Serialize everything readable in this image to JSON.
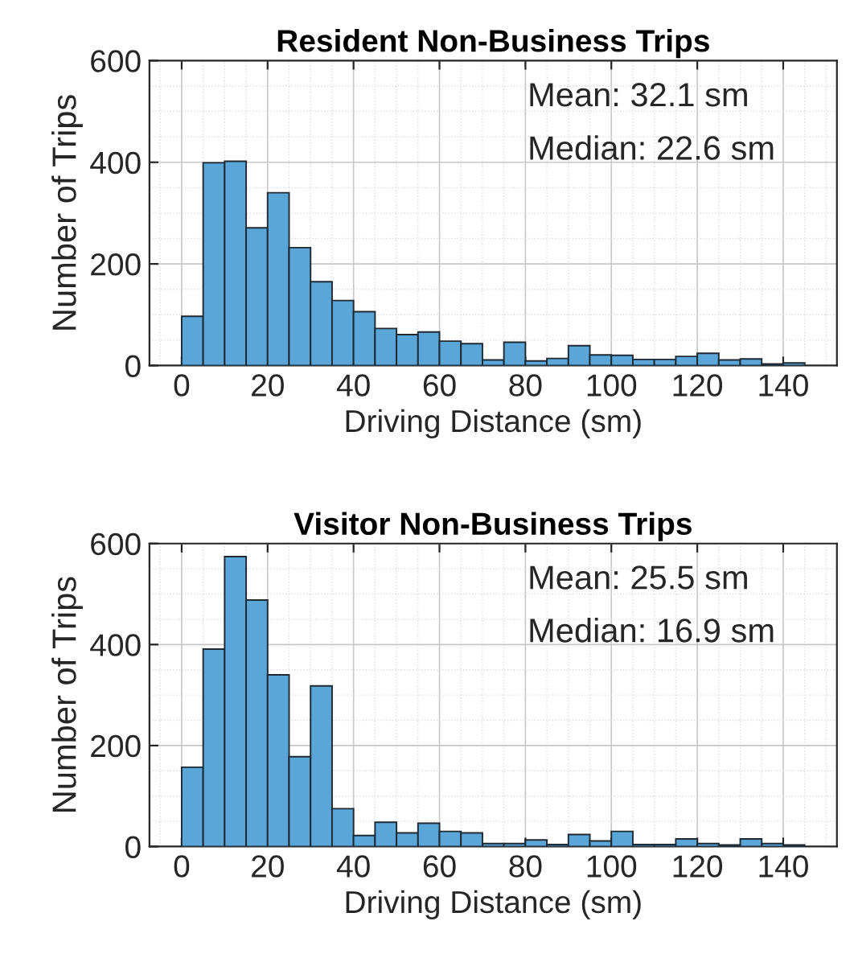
{
  "chart_data": [
    {
      "type": "histogram",
      "title": "Resident Non-Business Trips",
      "xlabel": "Driving Distance (sm)",
      "ylabel": "Number of Trips",
      "bins": [
        0,
        5,
        10,
        15,
        20,
        25,
        30,
        35,
        40,
        45,
        50,
        55,
        60,
        65,
        70,
        75,
        80,
        85,
        90,
        95,
        100,
        105,
        110,
        115,
        120,
        125,
        130,
        135,
        140,
        145
      ],
      "values": [
        97,
        399,
        402,
        271,
        340,
        232,
        165,
        128,
        106,
        73,
        61,
        66,
        48,
        43,
        11,
        46,
        9,
        14,
        39,
        21,
        20,
        12,
        12,
        18,
        24,
        11,
        13,
        3,
        5
      ],
      "color": "#5aa6d8",
      "xlim": [
        -7.5,
        152.5
      ],
      "xticks": [
        0,
        20,
        40,
        60,
        80,
        100,
        120,
        140
      ],
      "ylim": [
        0,
        600
      ],
      "yticks": [
        0,
        200,
        400,
        600
      ],
      "grid": true,
      "annotations": [
        "Mean: 32.1 sm",
        "Median: 22.6 sm"
      ]
    },
    {
      "type": "histogram",
      "title": "Visitor Non-Business Trips",
      "xlabel": "Driving Distance (sm)",
      "ylabel": "Number of Trips",
      "bins": [
        0,
        5,
        10,
        15,
        20,
        25,
        30,
        35,
        40,
        45,
        50,
        55,
        60,
        65,
        70,
        75,
        80,
        85,
        90,
        95,
        100,
        105,
        110,
        115,
        120,
        125,
        130,
        135,
        140,
        145
      ],
      "values": [
        157,
        391,
        574,
        488,
        340,
        178,
        318,
        75,
        22,
        48,
        27,
        46,
        30,
        27,
        6,
        6,
        13,
        4,
        24,
        11,
        30,
        4,
        4,
        15,
        6,
        3,
        15,
        6,
        3
      ],
      "color": "#5aa6d8",
      "xlim": [
        -7.5,
        152.5
      ],
      "xticks": [
        0,
        20,
        40,
        60,
        80,
        100,
        120,
        140
      ],
      "ylim": [
        0,
        600
      ],
      "yticks": [
        0,
        200,
        400,
        600
      ],
      "grid": true,
      "annotations": [
        "Mean: 25.5 sm",
        "Median: 16.9 sm"
      ]
    }
  ]
}
